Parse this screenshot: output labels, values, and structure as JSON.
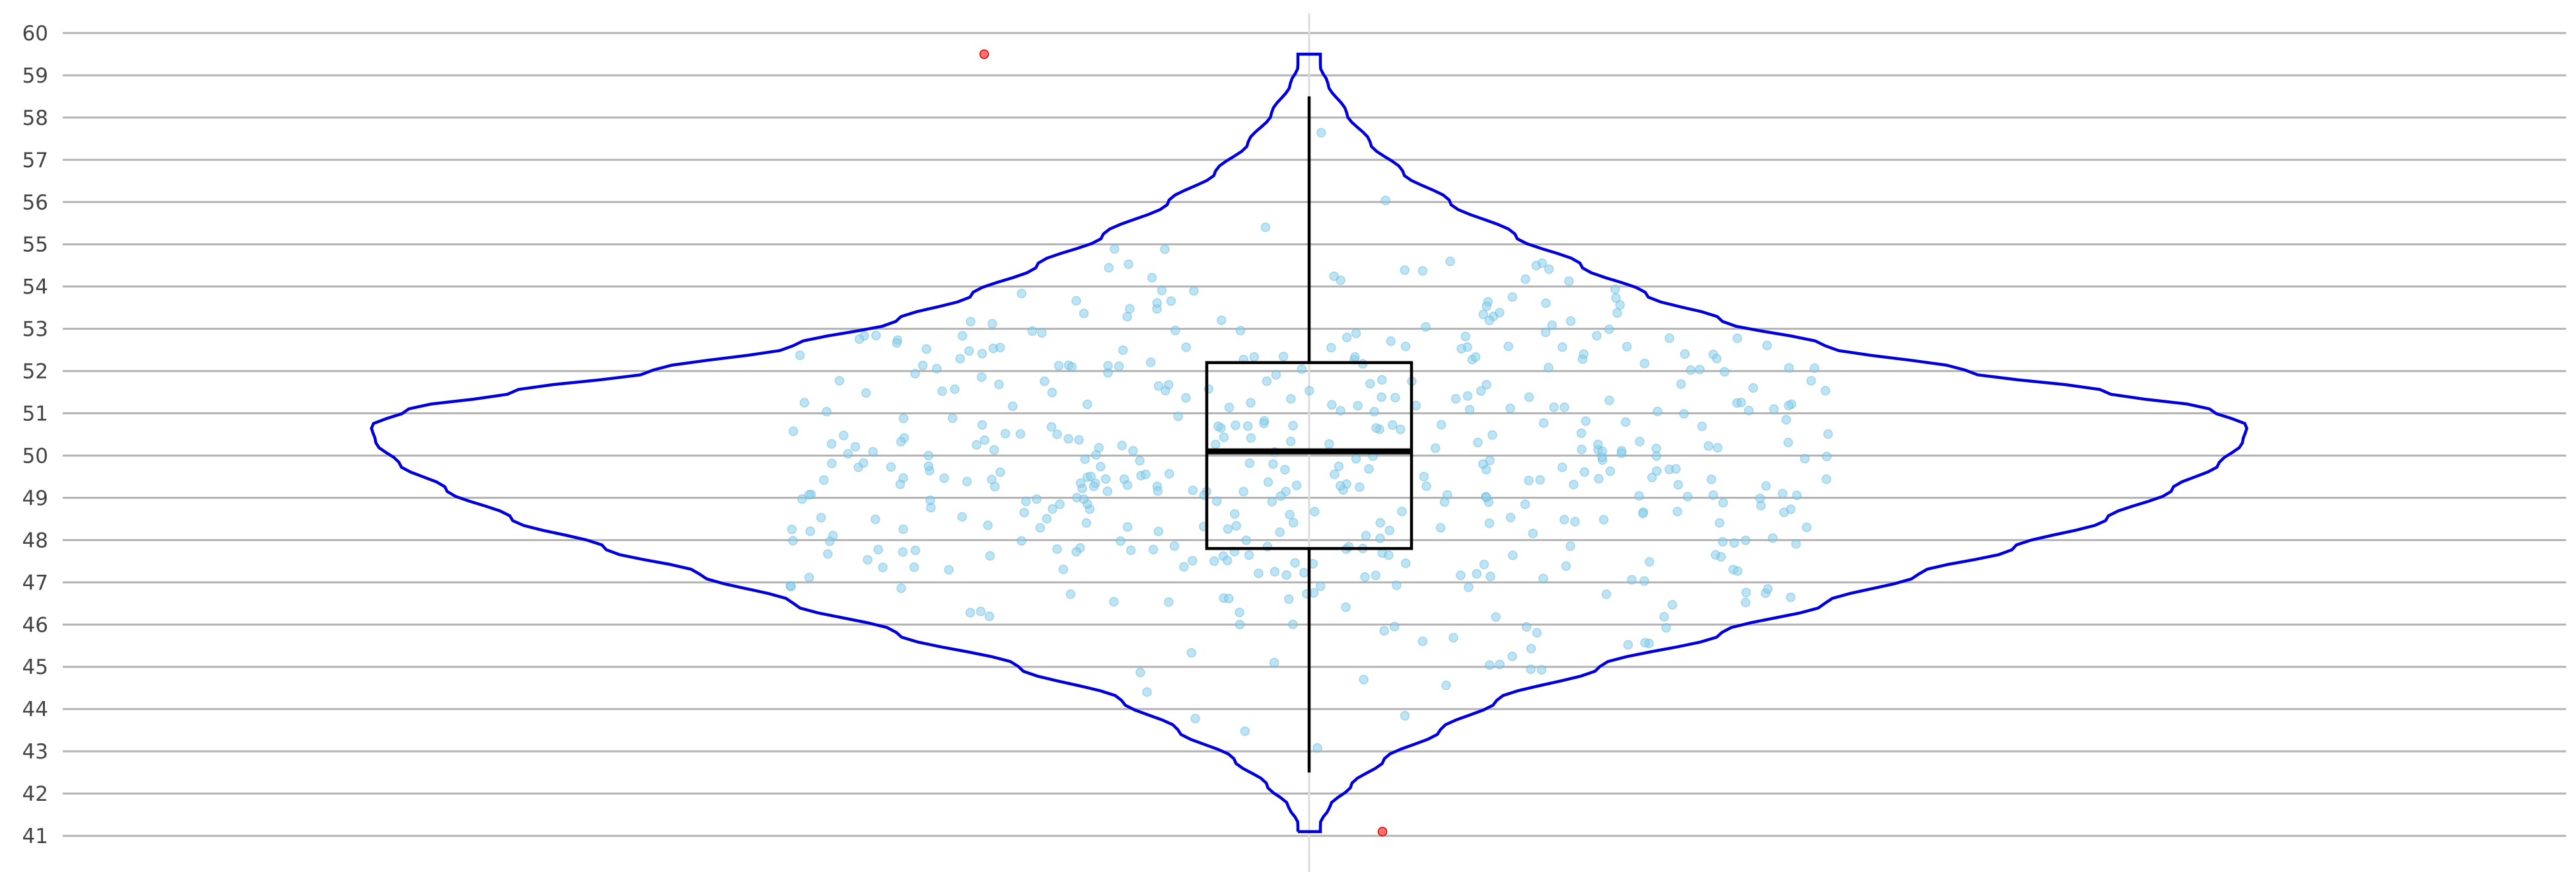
{
  "chart_data": {
    "type": "violin",
    "title": "",
    "xlabel": "",
    "ylabel": "",
    "ylim": [
      41,
      60
    ],
    "yticks": [
      41,
      42,
      43,
      44,
      45,
      46,
      47,
      48,
      49,
      50,
      51,
      52,
      53,
      54,
      55,
      56,
      57,
      58,
      59,
      60
    ],
    "grid": "horizontal",
    "box": {
      "whisker_low": 42.5,
      "q1": 47.8,
      "median": 50.1,
      "q3": 52.2,
      "whisker_high": 58.5
    },
    "outliers": [
      59.5,
      41.1
    ],
    "violin_range": [
      41.1,
      59.5
    ],
    "violin_peak": 50.7,
    "jitter_points": "approximately 500 individual observations spread between 42.5 and 58.5",
    "colors": {
      "violin_outline": "#0000dd",
      "box": "#000000",
      "points": "#87ceeb",
      "outliers": "#ff4d4d",
      "grid": "#b3b3b3",
      "center_line": "#dddddd"
    }
  }
}
